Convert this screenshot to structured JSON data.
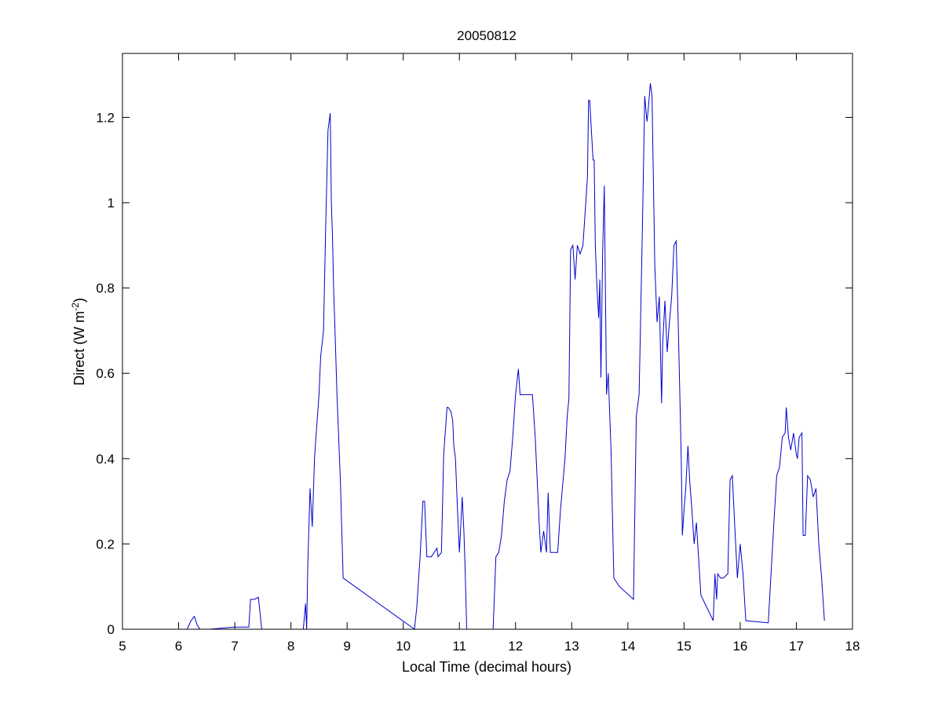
{
  "chart_data": {
    "type": "line",
    "title": "20050812",
    "xlabel": "Local Time (decimal hours)",
    "ylabel": {
      "prefix": "Direct (W m",
      "superscript": "-2",
      "suffix": ")"
    },
    "xlim": [
      5,
      18
    ],
    "ylim": [
      0,
      1.35
    ],
    "xticks": [
      5,
      6,
      7,
      8,
      9,
      10,
      11,
      12,
      13,
      14,
      15,
      16,
      17,
      18
    ],
    "xtick_labels": [
      "5",
      "6",
      "7",
      "8",
      "9",
      "10",
      "11",
      "12",
      "13",
      "14",
      "15",
      "16",
      "17",
      "18"
    ],
    "yticks": [
      0,
      0.2,
      0.4,
      0.6,
      0.8,
      1.0,
      1.2
    ],
    "ytick_labels": [
      "0",
      "0.2",
      "0.4",
      "0.6",
      "0.8",
      "1",
      "1.2"
    ],
    "grid": false,
    "series": [
      {
        "color": "#0000cc",
        "x": [
          6.0,
          6.15,
          6.22,
          6.28,
          6.33,
          6.38,
          6.55,
          7.0,
          7.25,
          7.28,
          7.35,
          7.42,
          7.48,
          8.0,
          8.22,
          8.26,
          8.28,
          8.3,
          8.34,
          8.38,
          8.42,
          8.45,
          8.5,
          8.53,
          8.58,
          8.62,
          8.66,
          8.7,
          8.72,
          8.74,
          8.76,
          8.78,
          8.82,
          8.88,
          8.93,
          10.2,
          10.24,
          10.26,
          10.3,
          10.35,
          10.38,
          10.42,
          10.45,
          10.5,
          10.6,
          10.62,
          10.68,
          10.72,
          10.78,
          10.8,
          10.85,
          10.88,
          10.9,
          10.93,
          10.96,
          11.0,
          11.05,
          11.08,
          11.1,
          11.13,
          11.2,
          11.6,
          11.65,
          11.7,
          11.75,
          11.8,
          11.85,
          11.9,
          11.95,
          12.0,
          12.05,
          12.08,
          12.12,
          12.3,
          12.35,
          12.42,
          12.45,
          12.5,
          12.55,
          12.58,
          12.62,
          12.75,
          12.8,
          12.88,
          12.92,
          12.95,
          12.98,
          13.02,
          13.06,
          13.1,
          13.15,
          13.2,
          13.28,
          13.3,
          13.32,
          13.38,
          13.4,
          13.42,
          13.45,
          13.48,
          13.5,
          13.52,
          13.55,
          13.58,
          13.62,
          13.65,
          13.7,
          13.75,
          13.85,
          14.1,
          14.15,
          14.2,
          14.26,
          14.3,
          14.34,
          14.37,
          14.4,
          14.43,
          14.48,
          14.52,
          14.56,
          14.6,
          14.62,
          14.66,
          14.7,
          14.74,
          14.78,
          14.82,
          14.86,
          14.9,
          14.95,
          14.97,
          15.0,
          15.03,
          15.07,
          15.1,
          15.14,
          15.18,
          15.22,
          15.3,
          15.52,
          15.55,
          15.58,
          15.6,
          15.65,
          15.7,
          15.78,
          15.82,
          15.86,
          15.9,
          15.95,
          16.0,
          16.05,
          16.1,
          16.5,
          16.6,
          16.65,
          16.7,
          16.75,
          16.8,
          16.82,
          16.86,
          16.9,
          16.95,
          17.0,
          17.02,
          17.05,
          17.1,
          17.12,
          17.16,
          17.2,
          17.25,
          17.3,
          17.35,
          17.4,
          17.45,
          17.5
        ],
        "y": [
          0.0,
          0.0,
          0.02,
          0.03,
          0.01,
          0.0,
          0.0,
          0.005,
          0.005,
          0.07,
          0.07,
          0.075,
          0.0,
          0.0,
          0.0,
          0.06,
          0.0,
          0.15,
          0.33,
          0.24,
          0.4,
          0.46,
          0.55,
          0.64,
          0.7,
          0.95,
          1.17,
          1.21,
          1.0,
          0.92,
          0.8,
          0.72,
          0.55,
          0.35,
          0.12,
          0.0,
          0.05,
          0.09,
          0.17,
          0.3,
          0.3,
          0.17,
          0.17,
          0.17,
          0.19,
          0.17,
          0.18,
          0.41,
          0.52,
          0.52,
          0.51,
          0.49,
          0.43,
          0.4,
          0.3,
          0.18,
          0.31,
          0.23,
          0.15,
          0.0,
          0.0,
          0.0,
          0.17,
          0.18,
          0.22,
          0.3,
          0.35,
          0.37,
          0.45,
          0.55,
          0.61,
          0.55,
          0.55,
          0.55,
          0.45,
          0.25,
          0.18,
          0.23,
          0.18,
          0.32,
          0.18,
          0.18,
          0.28,
          0.4,
          0.5,
          0.54,
          0.89,
          0.9,
          0.82,
          0.9,
          0.88,
          0.9,
          1.06,
          1.24,
          1.24,
          1.1,
          1.1,
          0.9,
          0.8,
          0.73,
          0.82,
          0.59,
          0.88,
          1.04,
          0.55,
          0.6,
          0.42,
          0.12,
          0.1,
          0.07,
          0.5,
          0.55,
          0.95,
          1.25,
          1.19,
          1.23,
          1.28,
          1.25,
          0.85,
          0.72,
          0.78,
          0.53,
          0.67,
          0.77,
          0.65,
          0.72,
          0.78,
          0.9,
          0.91,
          0.7,
          0.4,
          0.22,
          0.28,
          0.33,
          0.43,
          0.35,
          0.28,
          0.2,
          0.25,
          0.08,
          0.02,
          0.13,
          0.07,
          0.13,
          0.12,
          0.12,
          0.13,
          0.35,
          0.36,
          0.25,
          0.12,
          0.2,
          0.13,
          0.02,
          0.015,
          0.25,
          0.36,
          0.38,
          0.45,
          0.46,
          0.52,
          0.45,
          0.42,
          0.46,
          0.41,
          0.4,
          0.45,
          0.46,
          0.22,
          0.22,
          0.36,
          0.35,
          0.31,
          0.33,
          0.2,
          0.12,
          0.02
        ]
      }
    ]
  }
}
